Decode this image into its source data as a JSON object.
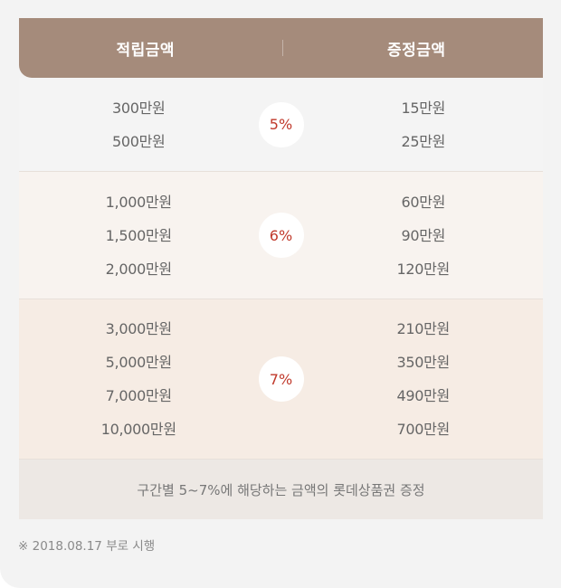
{
  "header": {
    "left_label": "적립금액",
    "right_label": "증정금액"
  },
  "tiers": [
    {
      "rate": "5%",
      "deposits": [
        "300만원",
        "500만원"
      ],
      "gifts": [
        "15만원",
        "25만원"
      ]
    },
    {
      "rate": "6%",
      "deposits": [
        "1,000만원",
        "1,500만원",
        "2,000만원"
      ],
      "gifts": [
        "60만원",
        "90만원",
        "120만원"
      ]
    },
    {
      "rate": "7%",
      "deposits": [
        "3,000만원",
        "5,000만원",
        "7,000만원",
        "10,000만원"
      ],
      "gifts": [
        "210만원",
        "350만원",
        "490만원",
        "700만원"
      ]
    }
  ],
  "notice": "구간별 5~7%에 해당하는 금액의 롯데상품권 증정",
  "footnote": "※ 2018.08.17 부로 시행",
  "colors": {
    "header_bg": "#a58b7b",
    "rate_text": "#c0392b",
    "tier2_bg": "#f8f3ef",
    "tier3_bg": "#f6ece4",
    "notice_bg": "#ede8e4"
  }
}
